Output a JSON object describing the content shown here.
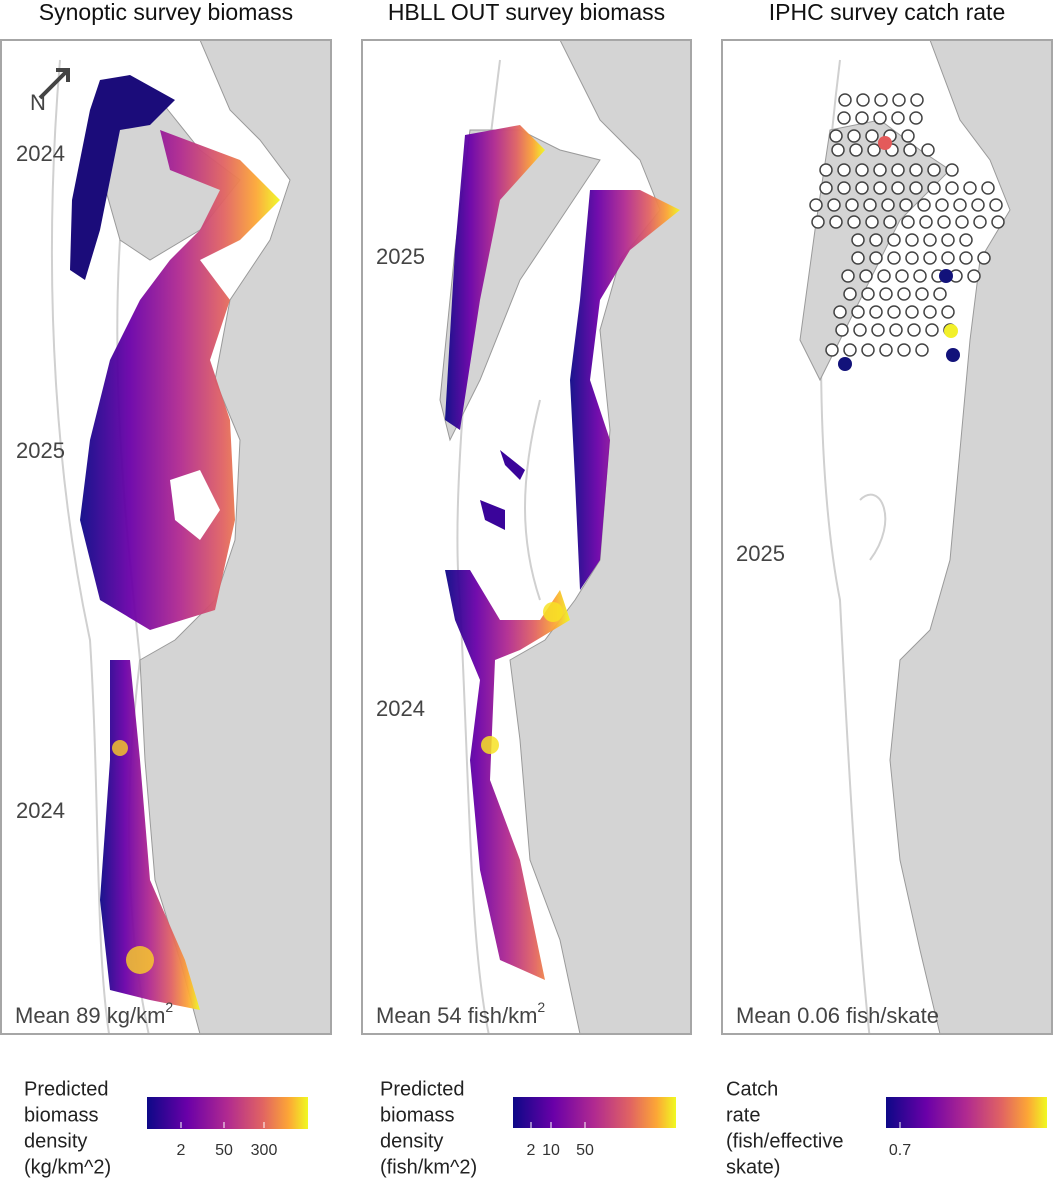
{
  "panels": [
    {
      "title": "Synoptic survey biomass",
      "north_label": "N",
      "year_labels": [
        "2024",
        "2025",
        "2024"
      ],
      "mean_label": "Mean 89 kg/km",
      "mean_superscript": "2",
      "legend": {
        "title_lines": [
          "Predicted",
          "biomass",
          "density",
          "(kg/km^2)"
        ],
        "tick_labels": [
          "2",
          "50",
          "300"
        ]
      }
    },
    {
      "title": "HBLL OUT survey biomass",
      "year_labels": [
        "2025",
        "2024"
      ],
      "mean_label": "Mean 54 fish/km",
      "mean_superscript": "2",
      "legend": {
        "title_lines": [
          "Predicted",
          "biomass",
          "density",
          "(fish/km^2)"
        ],
        "tick_labels": [
          "2",
          "10",
          "50"
        ]
      }
    },
    {
      "title": "IPHC survey catch rate",
      "year_labels": [
        "2025"
      ],
      "mean_label": "Mean 0.06 fish/skate",
      "legend": {
        "title_lines": [
          "Catch",
          "rate",
          "(fish/effective",
          "skate)"
        ],
        "tick_labels": [
          "0.7"
        ]
      }
    }
  ]
}
